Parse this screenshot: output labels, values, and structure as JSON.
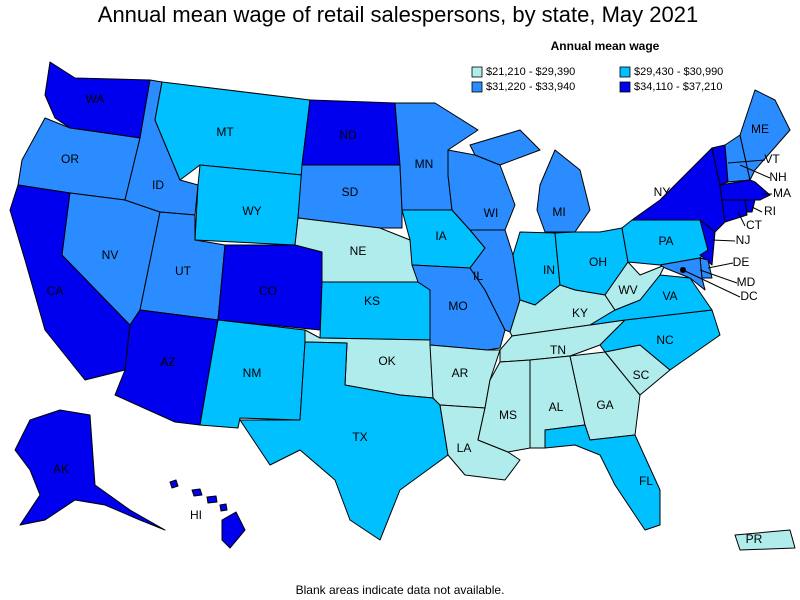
{
  "title": "Annual mean wage of retail salespersons, by state, May 2021",
  "legend": {
    "title": "Annual mean wage",
    "items": [
      {
        "label": "$21,210 - $29,390",
        "color": "#b0ecec"
      },
      {
        "label": "$31,220 - $33,940",
        "color": "#2a8cff"
      },
      {
        "label": "$29,430 - $30,990",
        "color": "#00c0ff"
      },
      {
        "label": "$34,110 - $37,210",
        "color": "#0000ee"
      }
    ]
  },
  "states": [
    {
      "abbr": "WA",
      "color": "#0000ee"
    },
    {
      "abbr": "OR",
      "color": "#2a8cff"
    },
    {
      "abbr": "CA",
      "color": "#0000ee"
    },
    {
      "abbr": "NV",
      "color": "#2a8cff"
    },
    {
      "abbr": "ID",
      "color": "#2a8cff"
    },
    {
      "abbr": "MT",
      "color": "#00c0ff"
    },
    {
      "abbr": "WY",
      "color": "#00c0ff"
    },
    {
      "abbr": "UT",
      "color": "#2a8cff"
    },
    {
      "abbr": "CO",
      "color": "#0000ee"
    },
    {
      "abbr": "AZ",
      "color": "#0000ee"
    },
    {
      "abbr": "NM",
      "color": "#00c0ff"
    },
    {
      "abbr": "ND",
      "color": "#0000ee"
    },
    {
      "abbr": "SD",
      "color": "#2a8cff"
    },
    {
      "abbr": "NE",
      "color": "#b0ecec"
    },
    {
      "abbr": "KS",
      "color": "#00c0ff"
    },
    {
      "abbr": "OK",
      "color": "#b0ecec"
    },
    {
      "abbr": "TX",
      "color": "#00c0ff"
    },
    {
      "abbr": "MN",
      "color": "#2a8cff"
    },
    {
      "abbr": "IA",
      "color": "#00c0ff"
    },
    {
      "abbr": "MO",
      "color": "#2a8cff"
    },
    {
      "abbr": "AR",
      "color": "#b0ecec"
    },
    {
      "abbr": "LA",
      "color": "#b0ecec"
    },
    {
      "abbr": "WI",
      "color": "#2a8cff"
    },
    {
      "abbr": "IL",
      "color": "#2a8cff"
    },
    {
      "abbr": "MI",
      "color": "#2a8cff"
    },
    {
      "abbr": "IN",
      "color": "#00c0ff"
    },
    {
      "abbr": "OH",
      "color": "#00c0ff"
    },
    {
      "abbr": "KY",
      "color": "#b0ecec"
    },
    {
      "abbr": "TN",
      "color": "#b0ecec"
    },
    {
      "abbr": "MS",
      "color": "#b0ecec"
    },
    {
      "abbr": "AL",
      "color": "#b0ecec"
    },
    {
      "abbr": "GA",
      "color": "#b0ecec"
    },
    {
      "abbr": "FL",
      "color": "#00c0ff"
    },
    {
      "abbr": "SC",
      "color": "#b0ecec"
    },
    {
      "abbr": "NC",
      "color": "#00c0ff"
    },
    {
      "abbr": "VA",
      "color": "#00c0ff"
    },
    {
      "abbr": "WV",
      "color": "#b0ecec"
    },
    {
      "abbr": "PA",
      "color": "#00c0ff"
    },
    {
      "abbr": "NY",
      "color": "#0000ee"
    },
    {
      "abbr": "VT",
      "color": "#0000ee"
    },
    {
      "abbr": "NH",
      "color": "#2a8cff"
    },
    {
      "abbr": "ME",
      "color": "#2a8cff"
    },
    {
      "abbr": "MA",
      "color": "#0000ee"
    },
    {
      "abbr": "CT",
      "color": "#0000ee"
    },
    {
      "abbr": "RI",
      "color": "#0000ee"
    },
    {
      "abbr": "NJ",
      "color": "#0000ee"
    },
    {
      "abbr": "DE",
      "color": "#2a8cff"
    },
    {
      "abbr": "MD",
      "color": "#2a8cff"
    },
    {
      "abbr": "DC",
      "color": "#0000ee"
    },
    {
      "abbr": "AK",
      "color": "#0000ee"
    },
    {
      "abbr": "HI",
      "color": "#0000ee"
    },
    {
      "abbr": "PR",
      "color": "#b0ecec"
    }
  ],
  "footnote": "Blank areas indicate data not available."
}
